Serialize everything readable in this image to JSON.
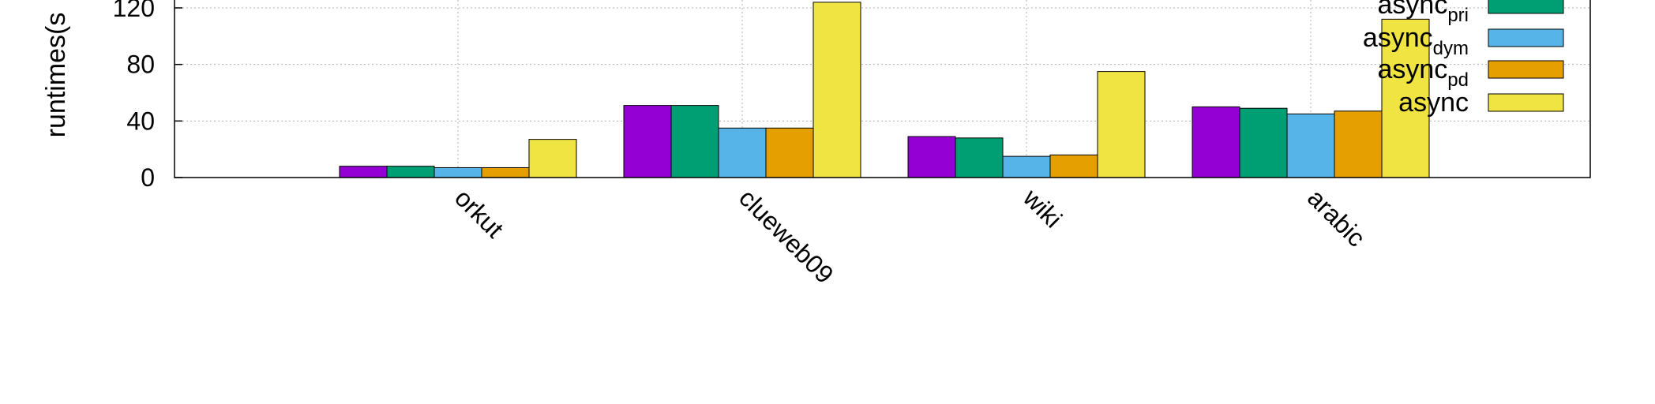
{
  "chart_data": {
    "type": "bar",
    "ylabel": "runtimes(s",
    "ylim": [
      0,
      120
    ],
    "yticks": [
      0,
      40,
      80,
      120
    ],
    "grid": true,
    "legend_position": "top-right",
    "categories": [
      "orkut",
      "clueweb09",
      "wiki",
      "arabic"
    ],
    "series": [
      {
        "name": "",
        "color": "#9400D3",
        "values": [
          8,
          51,
          29,
          50
        ]
      },
      {
        "name_base": "async",
        "name_sub": "pri",
        "color": "#009E73",
        "values": [
          8,
          51,
          28,
          49
        ]
      },
      {
        "name_base": "async",
        "name_sub": "dym",
        "color": "#56B4E9",
        "values": [
          7,
          35,
          15,
          45
        ]
      },
      {
        "name_base": "async",
        "name_sub": "pd",
        "color": "#E69F00",
        "values": [
          7,
          35,
          16,
          47
        ]
      },
      {
        "name_base": "async",
        "name_sub": "",
        "color": "#F0E442",
        "values": [
          27,
          124,
          75,
          112
        ]
      }
    ]
  }
}
